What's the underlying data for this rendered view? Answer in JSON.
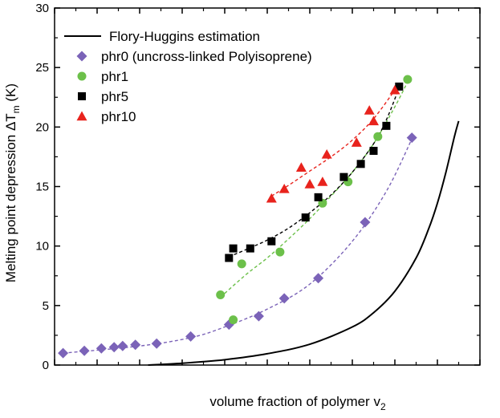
{
  "chart_data": {
    "type": "scatter",
    "xlabel_main": "volume fraction of polymer v",
    "xlabel_sub": "2",
    "ylabel_main": "Melting point depression ΔT",
    "ylabel_sub": "m",
    "ylabel_unit": " (K)",
    "xlim": [
      0.0,
      1.0
    ],
    "ylim": [
      0,
      30
    ],
    "xticks": [
      0.0,
      0.1,
      0.2,
      0.3,
      0.4,
      0.5,
      0.6,
      0.7,
      0.8,
      0.9,
      1.0
    ],
    "yticks": [
      0,
      5,
      10,
      15,
      20,
      25,
      30
    ],
    "ytick_labels": [
      "0",
      "5",
      "10",
      "15",
      "20",
      "25",
      "30"
    ],
    "grid": false,
    "legend_position": "top-left",
    "flory_huggins": {
      "name": "Flory-Huggins estimation",
      "color": "#000000",
      "x": [
        0.22,
        0.3,
        0.4,
        0.5,
        0.6,
        0.7,
        0.75,
        0.8,
        0.85,
        0.88,
        0.9,
        0.92,
        0.94,
        0.95
      ],
      "y": [
        0.0,
        0.15,
        0.45,
        0.95,
        1.75,
        3.2,
        4.4,
        6.2,
        9.0,
        11.5,
        13.6,
        16.2,
        19.2,
        20.5
      ]
    },
    "series": [
      {
        "name": "phr0 (uncross-linked Polyisoprene)",
        "marker": "diamond",
        "color": "#7b63b8",
        "x": [
          0.02,
          0.07,
          0.11,
          0.14,
          0.16,
          0.19,
          0.24,
          0.32,
          0.41,
          0.48,
          0.54,
          0.62,
          0.73,
          0.84
        ],
        "y": [
          1.0,
          1.2,
          1.4,
          1.5,
          1.6,
          1.7,
          1.8,
          2.4,
          3.4,
          4.1,
          5.6,
          7.3,
          12.0,
          19.1
        ],
        "fit_x": [
          0.02,
          0.2,
          0.32,
          0.4,
          0.5,
          0.6,
          0.7,
          0.78,
          0.84
        ],
        "fit_y": [
          1.0,
          1.6,
          2.3,
          3.2,
          4.7,
          6.8,
          10.4,
          14.6,
          19.0
        ]
      },
      {
        "name": "phr1",
        "marker": "circle",
        "color": "#6cc04a",
        "x": [
          0.39,
          0.42,
          0.44,
          0.53,
          0.63,
          0.69,
          0.76,
          0.83
        ],
        "y": [
          5.9,
          3.8,
          8.5,
          9.5,
          13.6,
          15.4,
          19.2,
          24.0
        ],
        "fit_x": [
          0.39,
          0.45,
          0.5,
          0.55,
          0.6,
          0.65,
          0.7,
          0.75,
          0.8,
          0.83
        ],
        "fit_y": [
          5.7,
          7.6,
          9.0,
          10.6,
          12.3,
          14.2,
          16.2,
          18.6,
          21.7,
          23.8
        ]
      },
      {
        "name": "phr5",
        "marker": "square",
        "color": "#000000",
        "x": [
          0.41,
          0.42,
          0.46,
          0.51,
          0.59,
          0.62,
          0.68,
          0.72,
          0.75,
          0.78,
          0.81
        ],
        "y": [
          9.0,
          9.8,
          9.8,
          10.4,
          12.4,
          14.1,
          15.8,
          16.9,
          18.0,
          20.1,
          23.4
        ],
        "fit_x": [
          0.41,
          0.45,
          0.5,
          0.55,
          0.6,
          0.65,
          0.7,
          0.75,
          0.78,
          0.81
        ],
        "fit_y": [
          9.1,
          9.7,
          10.5,
          11.5,
          12.8,
          14.3,
          16.2,
          18.6,
          20.6,
          23.3
        ]
      },
      {
        "name": "phr10",
        "marker": "triangle",
        "color": "#e8231d",
        "x": [
          0.51,
          0.54,
          0.58,
          0.6,
          0.63,
          0.64,
          0.71,
          0.74,
          0.75,
          0.8
        ],
        "y": [
          14.0,
          14.8,
          16.6,
          15.2,
          15.4,
          17.7,
          18.7,
          21.4,
          20.5,
          23.1
        ],
        "fit_x": [
          0.51,
          0.55,
          0.6,
          0.65,
          0.7,
          0.75,
          0.8
        ],
        "fit_y": [
          14.2,
          15.1,
          16.3,
          17.5,
          18.9,
          20.7,
          23.1
        ]
      }
    ]
  }
}
